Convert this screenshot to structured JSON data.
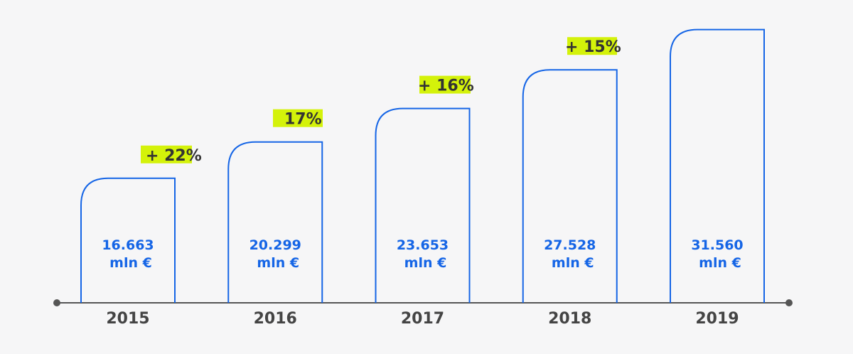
{
  "chart_data": {
    "type": "bar",
    "categories": [
      "2015",
      "2016",
      "2017",
      "2018",
      "2019"
    ],
    "values": [
      16.663,
      20.299,
      23.653,
      27.528,
      31.56
    ],
    "value_labels": [
      "16.663",
      "20.299",
      "23.653",
      "27.528",
      "31.560"
    ],
    "unit": "mln €",
    "growth_labels": [
      "+ 22%",
      "17%",
      "+ 16%",
      "+ 15%"
    ],
    "grid": false,
    "colors": {
      "bar_outline": "#1565e6",
      "value_text": "#1565e6",
      "highlight": "#d4f20a",
      "axis": "#555555",
      "axis_text": "#444444",
      "growth_text": "#333333",
      "background": "#f6f6f7"
    }
  }
}
